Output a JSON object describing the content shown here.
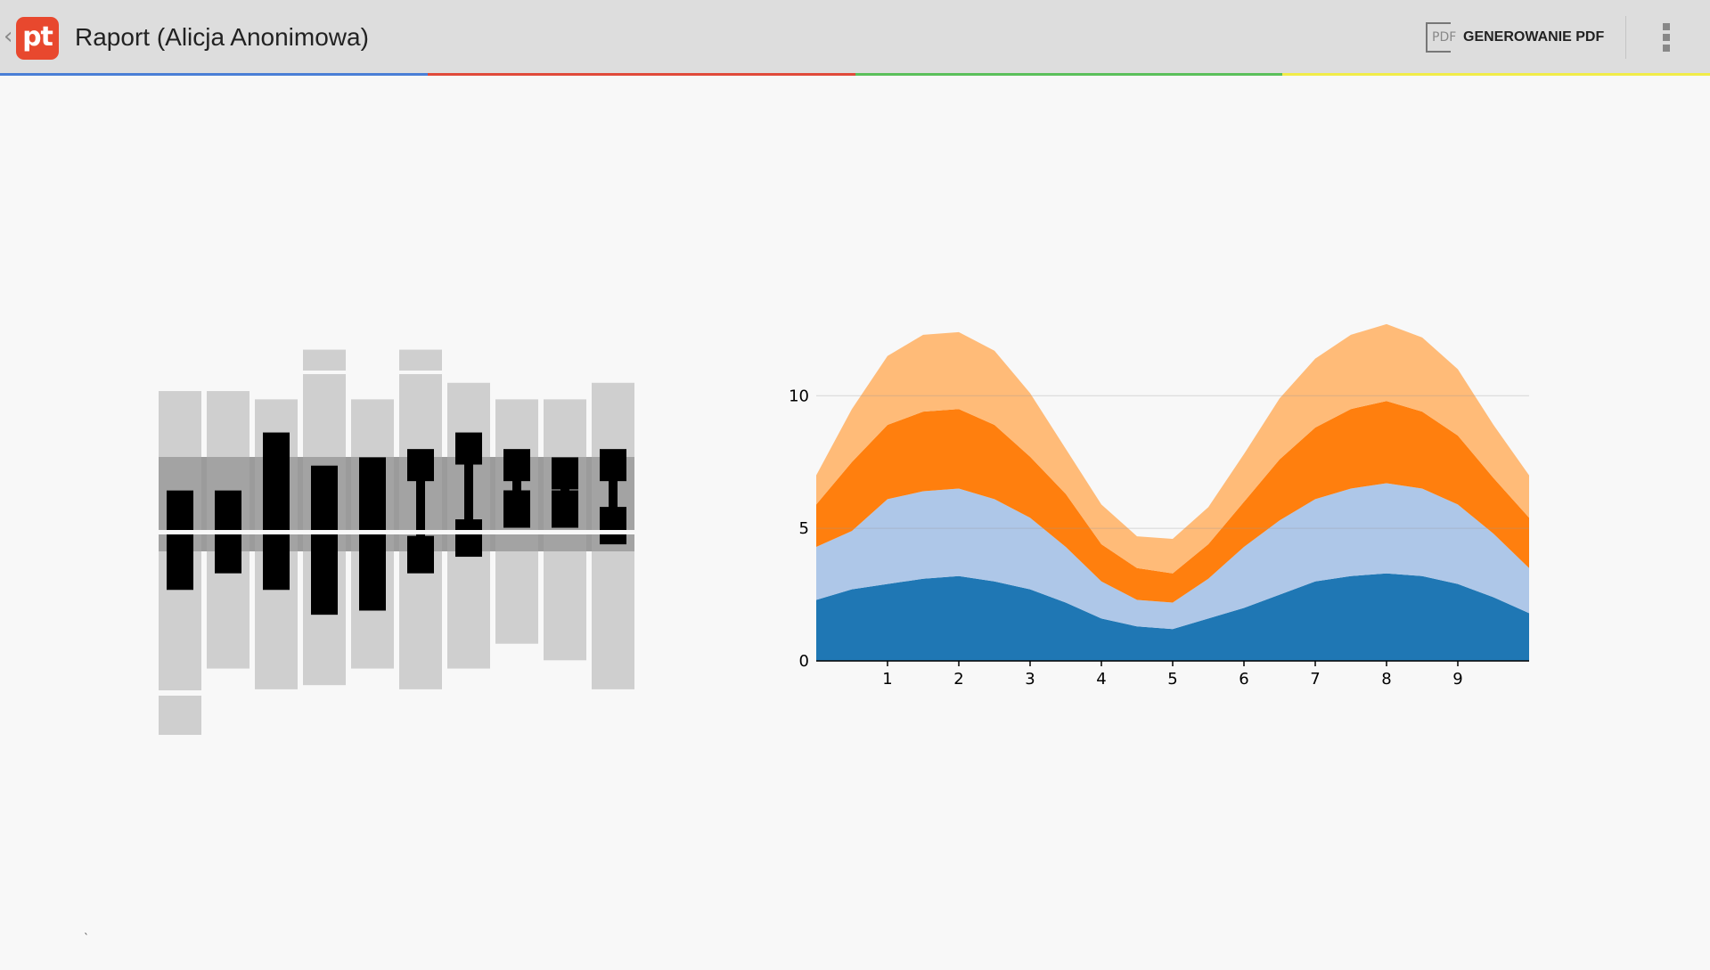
{
  "app": {
    "logo_text": "pt",
    "title": "Raport (Alicja Anonimowa)",
    "back_glyph": "‹"
  },
  "toolbar": {
    "pdf_icon_text": "PDF",
    "pdf_label": "GENEROWANIE PDF",
    "overflow_icon": "vertical-dots-icon"
  },
  "colors": {
    "strip": [
      "#4a7fd6",
      "#e04a3a",
      "#5bc05b",
      "#f1ec48"
    ],
    "logo": "#e8482e",
    "actionbar": "#dddddd",
    "page": "#f8f8f8"
  },
  "chart_data": [
    {
      "type": "bar",
      "description_kind": "range-bars",
      "categories_count": 10,
      "bars": [
        {
          "bg_top": 0.83,
          "bg_bottom": 0.0,
          "whisker_low": 0.11,
          "box_low": 0.35,
          "box_high": 0.59,
          "dumbbell": false
        },
        {
          "bg_top": 0.83,
          "bg_bottom": 0.16,
          "whisker_low": null,
          "box_low": 0.39,
          "box_high": 0.59,
          "dumbbell": false
        },
        {
          "bg_top": 0.81,
          "bg_bottom": 0.11,
          "whisker_low": null,
          "box_low": 0.35,
          "box_high": 0.73,
          "dumbbell": false
        },
        {
          "bg_top": 0.93,
          "bg_bottom": 0.12,
          "whisker_low": null,
          "box_low": 0.29,
          "box_high": 0.65,
          "dumbbell": false
        },
        {
          "bg_top": 0.81,
          "bg_bottom": 0.16,
          "whisker_low": null,
          "box_low": 0.3,
          "box_high": 0.67,
          "dumbbell": false
        },
        {
          "bg_top": 0.93,
          "bg_bottom": 0.11,
          "whisker_low": null,
          "box_low": 0.39,
          "box_high": 0.69,
          "dumbbell": true
        },
        {
          "bg_top": 0.85,
          "bg_bottom": 0.16,
          "whisker_low": null,
          "box_low": 0.43,
          "box_high": 0.73,
          "dumbbell": true
        },
        {
          "bg_top": 0.81,
          "bg_bottom": 0.22,
          "whisker_low": null,
          "box_low": 0.5,
          "box_high": 0.69,
          "dumbbell": true
        },
        {
          "bg_top": 0.81,
          "bg_bottom": 0.18,
          "whisker_low": null,
          "box_low": 0.5,
          "box_high": 0.67,
          "dumbbell": true
        },
        {
          "bg_top": 0.85,
          "bg_bottom": 0.11,
          "whisker_low": null,
          "box_low": 0.46,
          "box_high": 0.69,
          "dumbbell": true
        }
      ]
    },
    {
      "type": "area",
      "stacked": true,
      "x_ticks": [
        "1",
        "2",
        "3",
        "4",
        "5",
        "6",
        "7",
        "8",
        "9"
      ],
      "y_ticks": [
        "0",
        "5",
        "10"
      ],
      "xlim": [
        0,
        10
      ],
      "ylim": [
        0,
        13
      ],
      "x": [
        0,
        0.5,
        1,
        1.5,
        2,
        2.5,
        3,
        3.5,
        4,
        4.5,
        5,
        5.5,
        6,
        6.5,
        7,
        7.5,
        8,
        8.5,
        9,
        9.5,
        10
      ],
      "series": [
        {
          "color": "#1f77b4",
          "values": [
            2.3,
            2.7,
            2.9,
            3.1,
            3.2,
            3.0,
            2.7,
            2.2,
            1.6,
            1.3,
            1.2,
            1.6,
            2.0,
            2.5,
            3.0,
            3.2,
            3.3,
            3.2,
            2.9,
            2.4,
            1.8
          ]
        },
        {
          "color": "#aec7e8",
          "values": [
            2.0,
            2.2,
            3.2,
            3.3,
            3.3,
            3.1,
            2.7,
            2.1,
            1.4,
            1.0,
            1.0,
            1.5,
            2.3,
            2.8,
            3.1,
            3.3,
            3.4,
            3.3,
            3.0,
            2.4,
            1.7
          ]
        },
        {
          "color": "#ff7f0e",
          "values": [
            1.6,
            2.6,
            2.8,
            3.0,
            3.0,
            2.8,
            2.3,
            2.0,
            1.4,
            1.2,
            1.1,
            1.3,
            1.7,
            2.3,
            2.7,
            3.0,
            3.1,
            2.9,
            2.6,
            2.1,
            1.9
          ]
        },
        {
          "color": "#ffbb78",
          "values": [
            1.1,
            2.0,
            2.6,
            2.9,
            2.9,
            2.8,
            2.4,
            1.7,
            1.5,
            1.2,
            1.3,
            1.4,
            1.8,
            2.3,
            2.6,
            2.8,
            2.9,
            2.8,
            2.5,
            2.0,
            1.6
          ]
        }
      ]
    }
  ]
}
